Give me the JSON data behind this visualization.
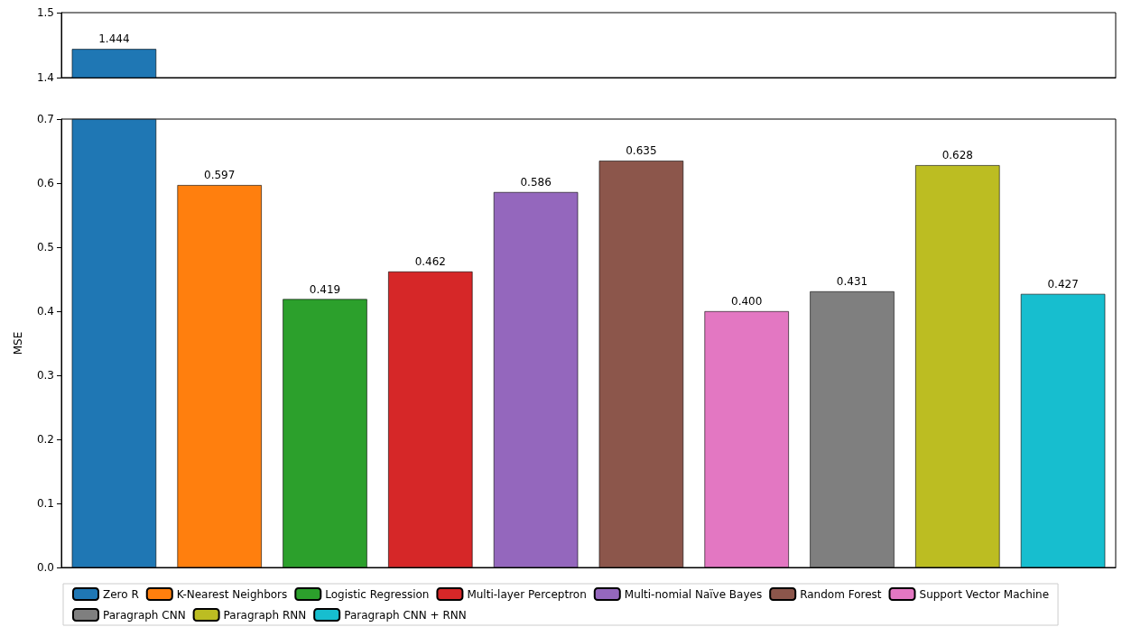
{
  "chart_data": [
    {
      "type": "bar",
      "categories": [
        null,
        null,
        null,
        null,
        null,
        null,
        null,
        null,
        null,
        null
      ],
      "ylim": [
        1.4,
        1.5
      ],
      "yticks": [
        {
          "value": 1.4,
          "label": "1.4"
        },
        {
          "value": 1.5,
          "label": "1.5"
        }
      ],
      "tick_labels": "y",
      "grid": false,
      "legend": false,
      "series": [
        {
          "color": "#1f77b4",
          "values": [
            1.444,
            null,
            null,
            null,
            null,
            null,
            null,
            null,
            null,
            null
          ],
          "value_labels": [
            "1.444",
            null,
            null,
            null,
            null,
            null,
            null,
            null,
            null,
            null
          ]
        }
      ]
    },
    {
      "type": "bar",
      "categories": [
        null,
        null,
        null,
        null,
        null,
        null,
        null,
        null,
        null,
        null
      ],
      "ylabel": "MSE",
      "ylim": [
        0,
        0.7
      ],
      "yticks": [
        {
          "value": 0,
          "label": "0.0"
        },
        {
          "value": 0.1,
          "label": "0.1"
        },
        {
          "value": 0.2,
          "label": "0.2"
        },
        {
          "value": 0.3,
          "label": "0.3"
        },
        {
          "value": 0.4,
          "label": "0.4"
        },
        {
          "value": 0.5,
          "label": "0.5"
        },
        {
          "value": 0.6,
          "label": "0.6"
        },
        {
          "value": 0.7,
          "label": "0.7"
        }
      ],
      "tick_labels": "y",
      "grid": false,
      "legend": "bottom",
      "series": [
        {
          "name": "Zero R",
          "color": "#1f77b4",
          "values": [
            0.7,
            null,
            null,
            null,
            null,
            null,
            null,
            null,
            null,
            null
          ],
          "value_labels": [
            null,
            null,
            null,
            null,
            null,
            null,
            null,
            null,
            null,
            null
          ]
        },
        {
          "name": "K-Nearest Neighbors",
          "color": "#ff7f0e",
          "values": [
            null,
            0.597,
            null,
            null,
            null,
            null,
            null,
            null,
            null,
            null
          ],
          "value_labels": [
            null,
            "0.597",
            null,
            null,
            null,
            null,
            null,
            null,
            null,
            null
          ]
        },
        {
          "name": "Logistic Regression",
          "color": "#2ca02c",
          "values": [
            null,
            null,
            0.419,
            null,
            null,
            null,
            null,
            null,
            null,
            null
          ],
          "value_labels": [
            null,
            null,
            "0.419",
            null,
            null,
            null,
            null,
            null,
            null,
            null
          ]
        },
        {
          "name": "Multi-layer Perceptron",
          "color": "#d62728",
          "values": [
            null,
            null,
            null,
            0.462,
            null,
            null,
            null,
            null,
            null,
            null
          ],
          "value_labels": [
            null,
            null,
            null,
            "0.462",
            null,
            null,
            null,
            null,
            null,
            null
          ]
        },
        {
          "name": "Multi-nomial Naïve Bayes",
          "color": "#9467bd",
          "values": [
            null,
            null,
            null,
            null,
            0.586,
            null,
            null,
            null,
            null,
            null
          ],
          "value_labels": [
            null,
            null,
            null,
            null,
            "0.586",
            null,
            null,
            null,
            null,
            null
          ]
        },
        {
          "name": "Random Forest",
          "color": "#8c564b",
          "values": [
            null,
            null,
            null,
            null,
            null,
            0.635,
            null,
            null,
            null,
            null
          ],
          "value_labels": [
            null,
            null,
            null,
            null,
            null,
            "0.635",
            null,
            null,
            null,
            null
          ]
        },
        {
          "name": "Support Vector Machine",
          "color": "#e377c2",
          "values": [
            null,
            null,
            null,
            null,
            null,
            null,
            0.4,
            null,
            null,
            null
          ],
          "value_labels": [
            null,
            null,
            null,
            null,
            null,
            null,
            "0.400",
            null,
            null,
            null
          ]
        },
        {
          "name": "Paragraph CNN",
          "color": "#7f7f7f",
          "values": [
            null,
            null,
            null,
            null,
            null,
            null,
            null,
            0.431,
            null,
            null
          ],
          "value_labels": [
            null,
            null,
            null,
            null,
            null,
            null,
            null,
            "0.431",
            null,
            null
          ]
        },
        {
          "name": "Paragraph RNN",
          "color": "#bcbd22",
          "values": [
            null,
            null,
            null,
            null,
            null,
            null,
            null,
            null,
            0.628,
            null
          ],
          "value_labels": [
            null,
            null,
            null,
            null,
            null,
            null,
            null,
            null,
            "0.628",
            null
          ]
        },
        {
          "name": "Paragraph CNN + RNN",
          "color": "#17becf",
          "values": [
            null,
            null,
            null,
            null,
            null,
            null,
            null,
            null,
            null,
            0.427
          ],
          "value_labels": [
            null,
            null,
            null,
            null,
            null,
            null,
            null,
            null,
            null,
            "0.427"
          ]
        }
      ]
    }
  ]
}
